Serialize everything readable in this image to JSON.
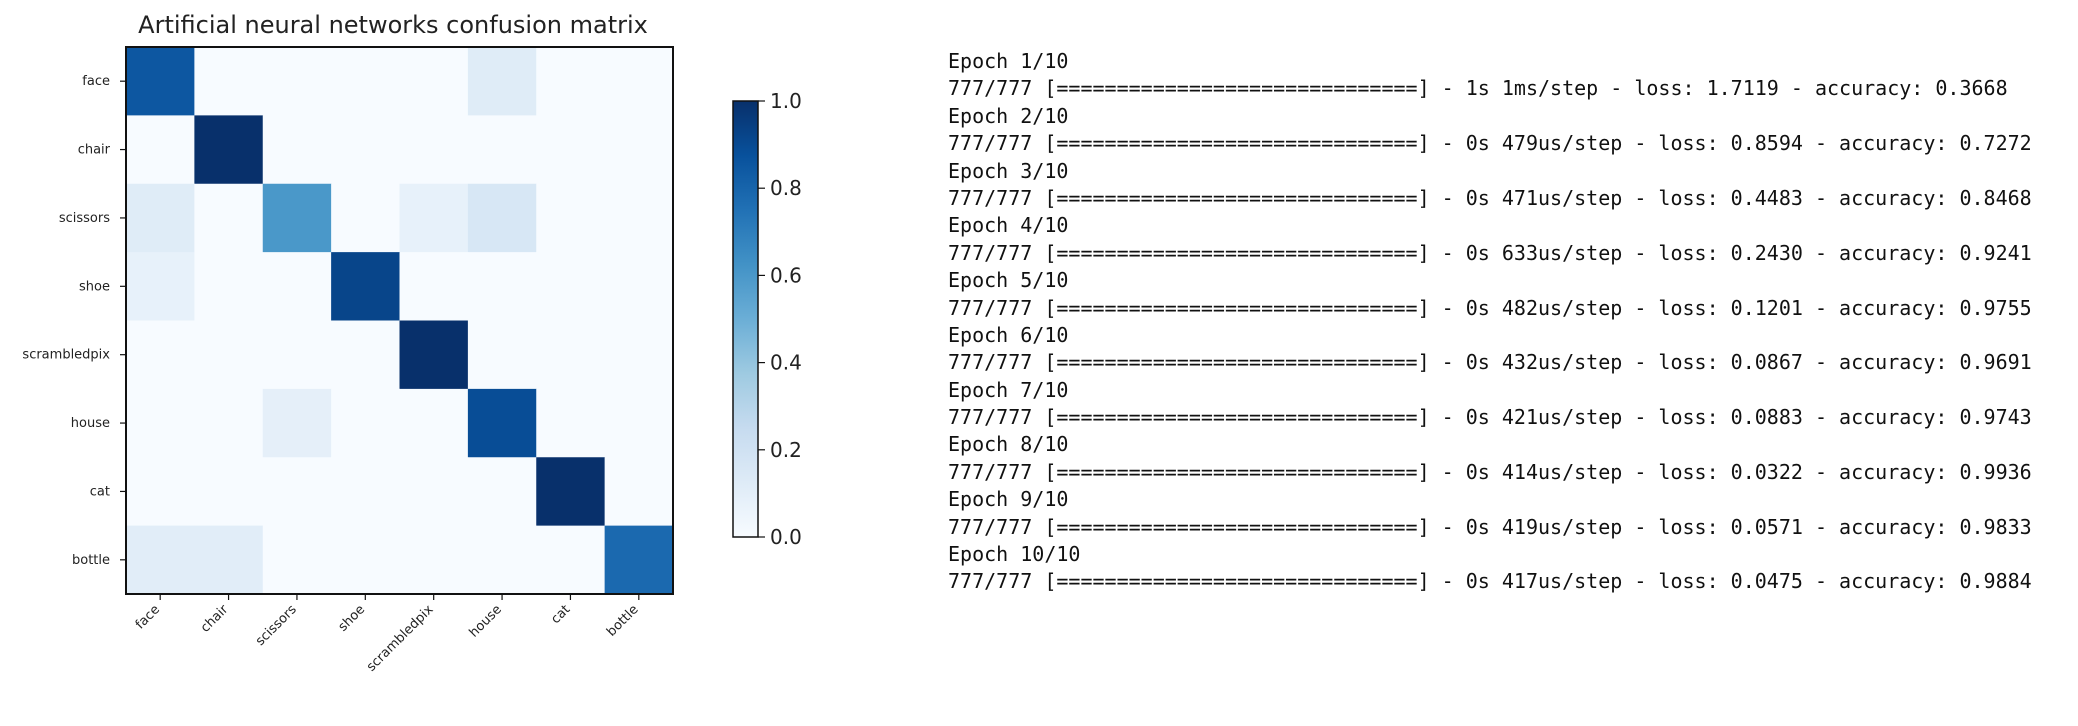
{
  "chart_data": {
    "type": "heatmap",
    "title": "Artificial neural networks confusion matrix",
    "xlabel": "",
    "ylabel": "",
    "categories": [
      "face",
      "chair",
      "scissors",
      "shoe",
      "scrambledpix",
      "house",
      "cat",
      "bottle"
    ],
    "values": [
      [
        0.85,
        0.0,
        0.0,
        0.0,
        0.0,
        0.12,
        0.0,
        0.0
      ],
      [
        0.0,
        1.0,
        0.0,
        0.0,
        0.0,
        0.0,
        0.0,
        0.0
      ],
      [
        0.12,
        0.0,
        0.6,
        0.0,
        0.08,
        0.16,
        0.0,
        0.0
      ],
      [
        0.08,
        0.0,
        0.0,
        0.92,
        0.0,
        0.0,
        0.0,
        0.0
      ],
      [
        0.0,
        0.0,
        0.0,
        0.0,
        1.0,
        0.0,
        0.0,
        0.0
      ],
      [
        0.0,
        0.0,
        0.09,
        0.0,
        0.0,
        0.89,
        0.0,
        0.0
      ],
      [
        0.0,
        0.0,
        0.0,
        0.0,
        0.0,
        0.0,
        1.0,
        0.0
      ],
      [
        0.11,
        0.11,
        0.0,
        0.0,
        0.0,
        0.0,
        0.0,
        0.78
      ]
    ],
    "colorbar": {
      "ticks": [
        "0.0",
        "0.2",
        "0.4",
        "0.6",
        "0.8",
        "1.0"
      ],
      "range": [
        0,
        1
      ]
    },
    "colormap": [
      "#f7fbff",
      "#deebf7",
      "#c6dbef",
      "#9ecae1",
      "#6baed6",
      "#4292c6",
      "#2171b5",
      "#08519c",
      "#08306b"
    ],
    "grid": false
  },
  "training_log": [
    "Epoch 1/10",
    "777/777 [==============================] - 1s 1ms/step - loss: 1.7119 - accuracy: 0.3668",
    "Epoch 2/10",
    "777/777 [==============================] - 0s 479us/step - loss: 0.8594 - accuracy: 0.7272",
    "Epoch 3/10",
    "777/777 [==============================] - 0s 471us/step - loss: 0.4483 - accuracy: 0.8468",
    "Epoch 4/10",
    "777/777 [==============================] - 0s 633us/step - loss: 0.2430 - accuracy: 0.9241",
    "Epoch 5/10",
    "777/777 [==============================] - 0s 482us/step - loss: 0.1201 - accuracy: 0.9755",
    "Epoch 6/10",
    "777/777 [==============================] - 0s 432us/step - loss: 0.0867 - accuracy: 0.9691",
    "Epoch 7/10",
    "777/777 [==============================] - 0s 421us/step - loss: 0.0883 - accuracy: 0.9743",
    "Epoch 8/10",
    "777/777 [==============================] - 0s 414us/step - loss: 0.0322 - accuracy: 0.9936",
    "Epoch 9/10",
    "777/777 [==============================] - 0s 419us/step - loss: 0.0571 - accuracy: 0.9833",
    "Epoch 10/10",
    "777/777 [==============================] - 0s 417us/step - loss: 0.0475 - accuracy: 0.9884"
  ]
}
